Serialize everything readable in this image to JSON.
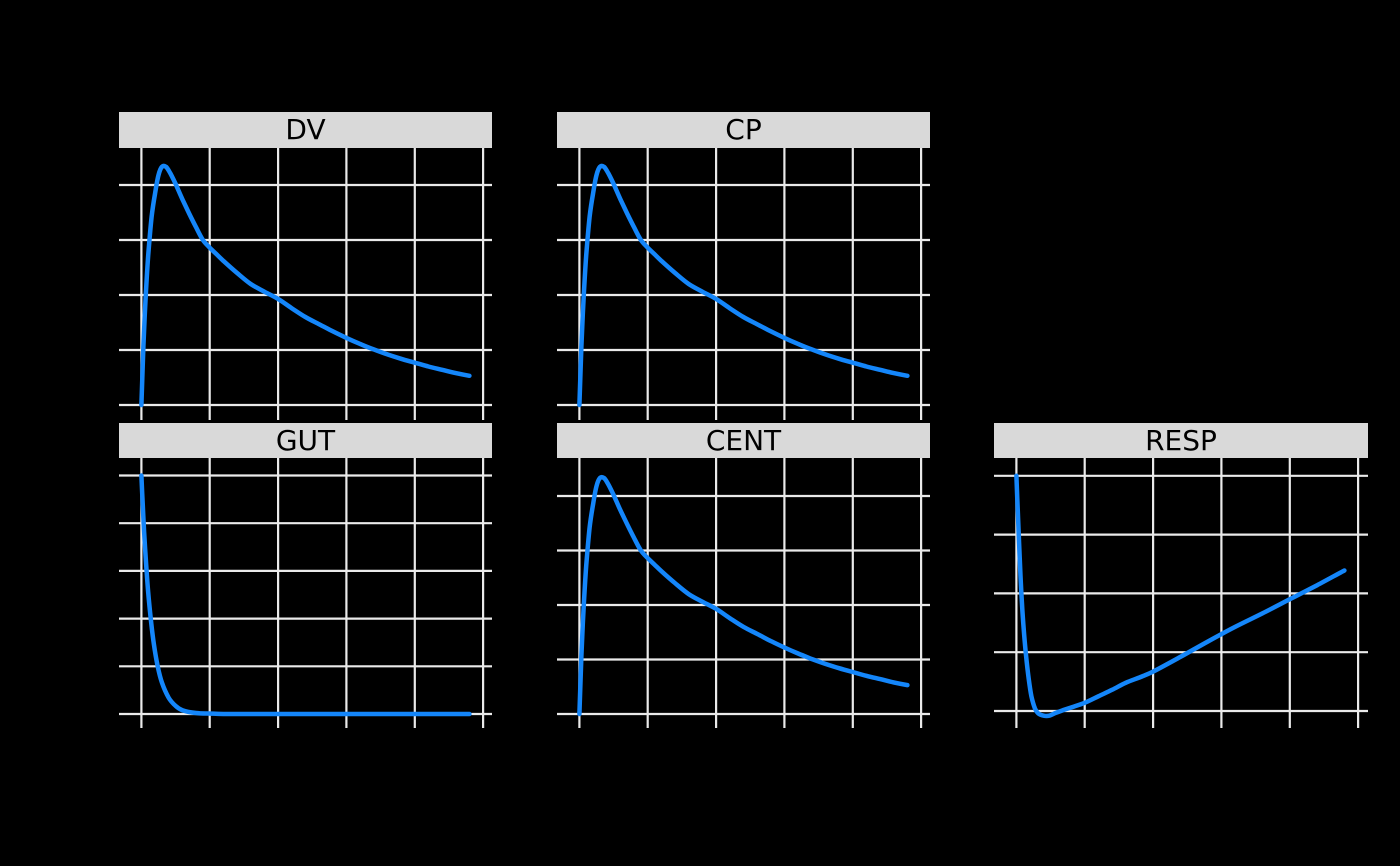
{
  "figure": {
    "background_color": "#000000",
    "strip_bg_color": "#d9d9d9",
    "strip_text_color": "#000000",
    "gridline_color": "#eaeaea",
    "series_color": "#1486fa"
  },
  "chart_data": {
    "type": "line",
    "title": "",
    "xlabel": "",
    "ylabel": "",
    "legend": "none",
    "grid": "on",
    "x_axis": {
      "unit": "time (no tick labels visible)",
      "gridline_positions": [
        0,
        5,
        10,
        15,
        20,
        25
      ],
      "range": [
        -1.64,
        25.64
      ],
      "curve_end": 24
    },
    "y_axis_note": "No tick labels visible; y values are in gridline units above the bottom gridline of each panel",
    "panels": [
      {
        "label": "DV",
        "row": 0,
        "col": 0,
        "y_gridline_count": 5,
        "points": [
          [
            0,
            0
          ],
          [
            0.15,
            1.07
          ],
          [
            0.3,
            1.9
          ],
          [
            0.5,
            2.72
          ],
          [
            0.75,
            3.42
          ],
          [
            1,
            3.85
          ],
          [
            1.25,
            4.18
          ],
          [
            1.5,
            4.33
          ],
          [
            1.8,
            4.33
          ],
          [
            2.1,
            4.22
          ],
          [
            2.5,
            4.02
          ],
          [
            3,
            3.74
          ],
          [
            3.5,
            3.48
          ],
          [
            4,
            3.23
          ],
          [
            4.5,
            3.0
          ],
          [
            5,
            2.86
          ],
          [
            5.5,
            2.74
          ],
          [
            6,
            2.62
          ],
          [
            7,
            2.4
          ],
          [
            8,
            2.2
          ],
          [
            9,
            2.06
          ],
          [
            10,
            1.93
          ],
          [
            11,
            1.76
          ],
          [
            12,
            1.6
          ],
          [
            13,
            1.47
          ],
          [
            14,
            1.34
          ],
          [
            15,
            1.22
          ],
          [
            16,
            1.11
          ],
          [
            17,
            1.01
          ],
          [
            18,
            0.92
          ],
          [
            19,
            0.84
          ],
          [
            20,
            0.77
          ],
          [
            21,
            0.7
          ],
          [
            22,
            0.64
          ],
          [
            23,
            0.58
          ],
          [
            24,
            0.53
          ]
        ]
      },
      {
        "label": "CP",
        "row": 0,
        "col": 1,
        "y_gridline_count": 5,
        "points": [
          [
            0,
            0
          ],
          [
            0.15,
            1.07
          ],
          [
            0.3,
            1.9
          ],
          [
            0.5,
            2.72
          ],
          [
            0.75,
            3.42
          ],
          [
            1,
            3.85
          ],
          [
            1.25,
            4.18
          ],
          [
            1.5,
            4.33
          ],
          [
            1.8,
            4.33
          ],
          [
            2.1,
            4.22
          ],
          [
            2.5,
            4.02
          ],
          [
            3,
            3.74
          ],
          [
            3.5,
            3.48
          ],
          [
            4,
            3.23
          ],
          [
            4.5,
            3.0
          ],
          [
            5,
            2.86
          ],
          [
            5.5,
            2.74
          ],
          [
            6,
            2.62
          ],
          [
            7,
            2.4
          ],
          [
            8,
            2.2
          ],
          [
            9,
            2.06
          ],
          [
            10,
            1.93
          ],
          [
            11,
            1.76
          ],
          [
            12,
            1.6
          ],
          [
            13,
            1.47
          ],
          [
            14,
            1.34
          ],
          [
            15,
            1.22
          ],
          [
            16,
            1.11
          ],
          [
            17,
            1.01
          ],
          [
            18,
            0.92
          ],
          [
            19,
            0.84
          ],
          [
            20,
            0.77
          ],
          [
            21,
            0.7
          ],
          [
            22,
            0.64
          ],
          [
            23,
            0.58
          ],
          [
            24,
            0.53
          ]
        ]
      },
      {
        "label": "GUT",
        "row": 1,
        "col": 0,
        "y_gridline_count": 6,
        "points": [
          [
            0,
            5
          ],
          [
            0.1,
            4.37
          ],
          [
            0.2,
            3.82
          ],
          [
            0.35,
            3.12
          ],
          [
            0.5,
            2.55
          ],
          [
            0.7,
            1.95
          ],
          [
            0.9,
            1.49
          ],
          [
            1.2,
            0.99
          ],
          [
            1.5,
            0.66
          ],
          [
            2,
            0.34
          ],
          [
            2.5,
            0.17
          ],
          [
            3,
            0.08
          ],
          [
            4,
            0.02
          ],
          [
            5,
            0.01
          ],
          [
            6,
            0
          ],
          [
            8,
            0
          ],
          [
            12,
            0
          ],
          [
            16,
            0
          ],
          [
            20,
            0
          ],
          [
            24,
            0
          ]
        ]
      },
      {
        "label": "CENT",
        "row": 1,
        "col": 1,
        "y_gridline_count": 5,
        "points": [
          [
            0,
            0
          ],
          [
            0.15,
            1.07
          ],
          [
            0.3,
            1.9
          ],
          [
            0.5,
            2.72
          ],
          [
            0.75,
            3.42
          ],
          [
            1,
            3.85
          ],
          [
            1.25,
            4.18
          ],
          [
            1.5,
            4.33
          ],
          [
            1.8,
            4.33
          ],
          [
            2.1,
            4.22
          ],
          [
            2.5,
            4.02
          ],
          [
            3,
            3.74
          ],
          [
            3.5,
            3.48
          ],
          [
            4,
            3.23
          ],
          [
            4.5,
            3.0
          ],
          [
            5,
            2.86
          ],
          [
            5.5,
            2.74
          ],
          [
            6,
            2.62
          ],
          [
            7,
            2.4
          ],
          [
            8,
            2.2
          ],
          [
            9,
            2.06
          ],
          [
            10,
            1.93
          ],
          [
            11,
            1.76
          ],
          [
            12,
            1.6
          ],
          [
            13,
            1.47
          ],
          [
            14,
            1.34
          ],
          [
            15,
            1.22
          ],
          [
            16,
            1.11
          ],
          [
            17,
            1.01
          ],
          [
            18,
            0.92
          ],
          [
            19,
            0.84
          ],
          [
            20,
            0.77
          ],
          [
            21,
            0.7
          ],
          [
            22,
            0.64
          ],
          [
            23,
            0.58
          ],
          [
            24,
            0.53
          ]
        ]
      },
      {
        "label": "RESP",
        "row": 1,
        "col": 2,
        "y_gridline_count": 5,
        "points": [
          [
            0,
            4
          ],
          [
            0.1,
            3.4
          ],
          [
            0.2,
            2.85
          ],
          [
            0.3,
            2.3
          ],
          [
            0.4,
            1.85
          ],
          [
            0.55,
            1.35
          ],
          [
            0.7,
            0.95
          ],
          [
            0.9,
            0.55
          ],
          [
            1.1,
            0.25
          ],
          [
            1.35,
            0.05
          ],
          [
            1.6,
            -0.04
          ],
          [
            2,
            -0.08
          ],
          [
            2.4,
            -0.08
          ],
          [
            2.9,
            -0.03
          ],
          [
            3.5,
            0.02
          ],
          [
            4,
            0.06
          ],
          [
            5,
            0.14
          ],
          [
            6,
            0.25
          ],
          [
            7,
            0.36
          ],
          [
            8,
            0.48
          ],
          [
            9,
            0.57
          ],
          [
            10,
            0.67
          ],
          [
            12,
            0.92
          ],
          [
            14,
            1.18
          ],
          [
            16,
            1.43
          ],
          [
            18,
            1.66
          ],
          [
            20,
            1.9
          ],
          [
            22,
            2.14
          ],
          [
            24,
            2.39
          ]
        ]
      }
    ]
  }
}
